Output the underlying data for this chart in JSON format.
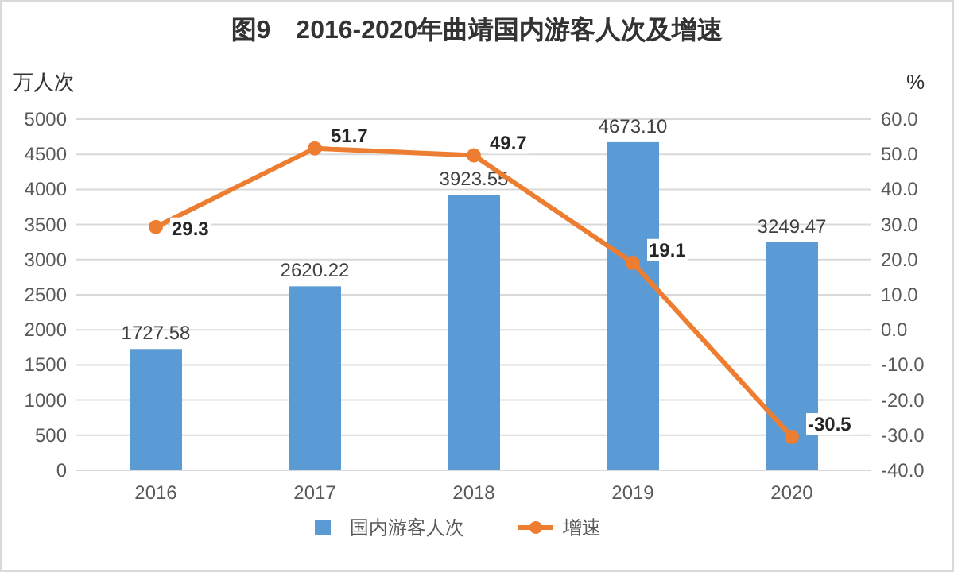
{
  "chart_data": {
    "type": "bar",
    "title": "图9　2016-2020年曲靖国内游客人次及增速",
    "ylabel": "万人次",
    "y2label": "%",
    "categories": [
      "2016",
      "2017",
      "2018",
      "2019",
      "2020"
    ],
    "series": [
      {
        "name": "国内游客人次",
        "color": "#5b9bd5",
        "values": [
          1727.58,
          2620.22,
          3923.55,
          4673.1,
          3249.47
        ],
        "value_labels": [
          "1727.58",
          "2620.22",
          "3923.55",
          "4673.10",
          "3249.47"
        ]
      },
      {
        "name": "增速",
        "type": "line",
        "axis": "y2",
        "color": "#ed7d31",
        "values": [
          29.3,
          51.7,
          49.7,
          19.1,
          -30.5
        ],
        "value_labels": [
          "29.3",
          "51.7",
          "49.7",
          "19.1",
          "-30.5"
        ]
      }
    ],
    "ylim": [
      0,
      5000
    ],
    "yticks": [
      0,
      500,
      1000,
      1500,
      2000,
      2500,
      3000,
      3500,
      4000,
      4500,
      5000
    ],
    "y2lim": [
      -40,
      60
    ],
    "y2ticks": [
      {
        "value": -40,
        "label": "-40.0"
      },
      {
        "value": -30,
        "label": "-30.0"
      },
      {
        "value": -20,
        "label": "-20.0"
      },
      {
        "value": -10,
        "label": "-10.0"
      },
      {
        "value": 0,
        "label": "0.0"
      },
      {
        "value": 10,
        "label": "10.0"
      },
      {
        "value": 20,
        "label": "20.0"
      },
      {
        "value": 30,
        "label": "30.0"
      },
      {
        "value": 40,
        "label": "40.0"
      },
      {
        "value": 50,
        "label": "50.0"
      },
      {
        "value": 60,
        "label": "60.0"
      }
    ],
    "grid": "y",
    "legend": "bottom",
    "marker": "circle"
  }
}
